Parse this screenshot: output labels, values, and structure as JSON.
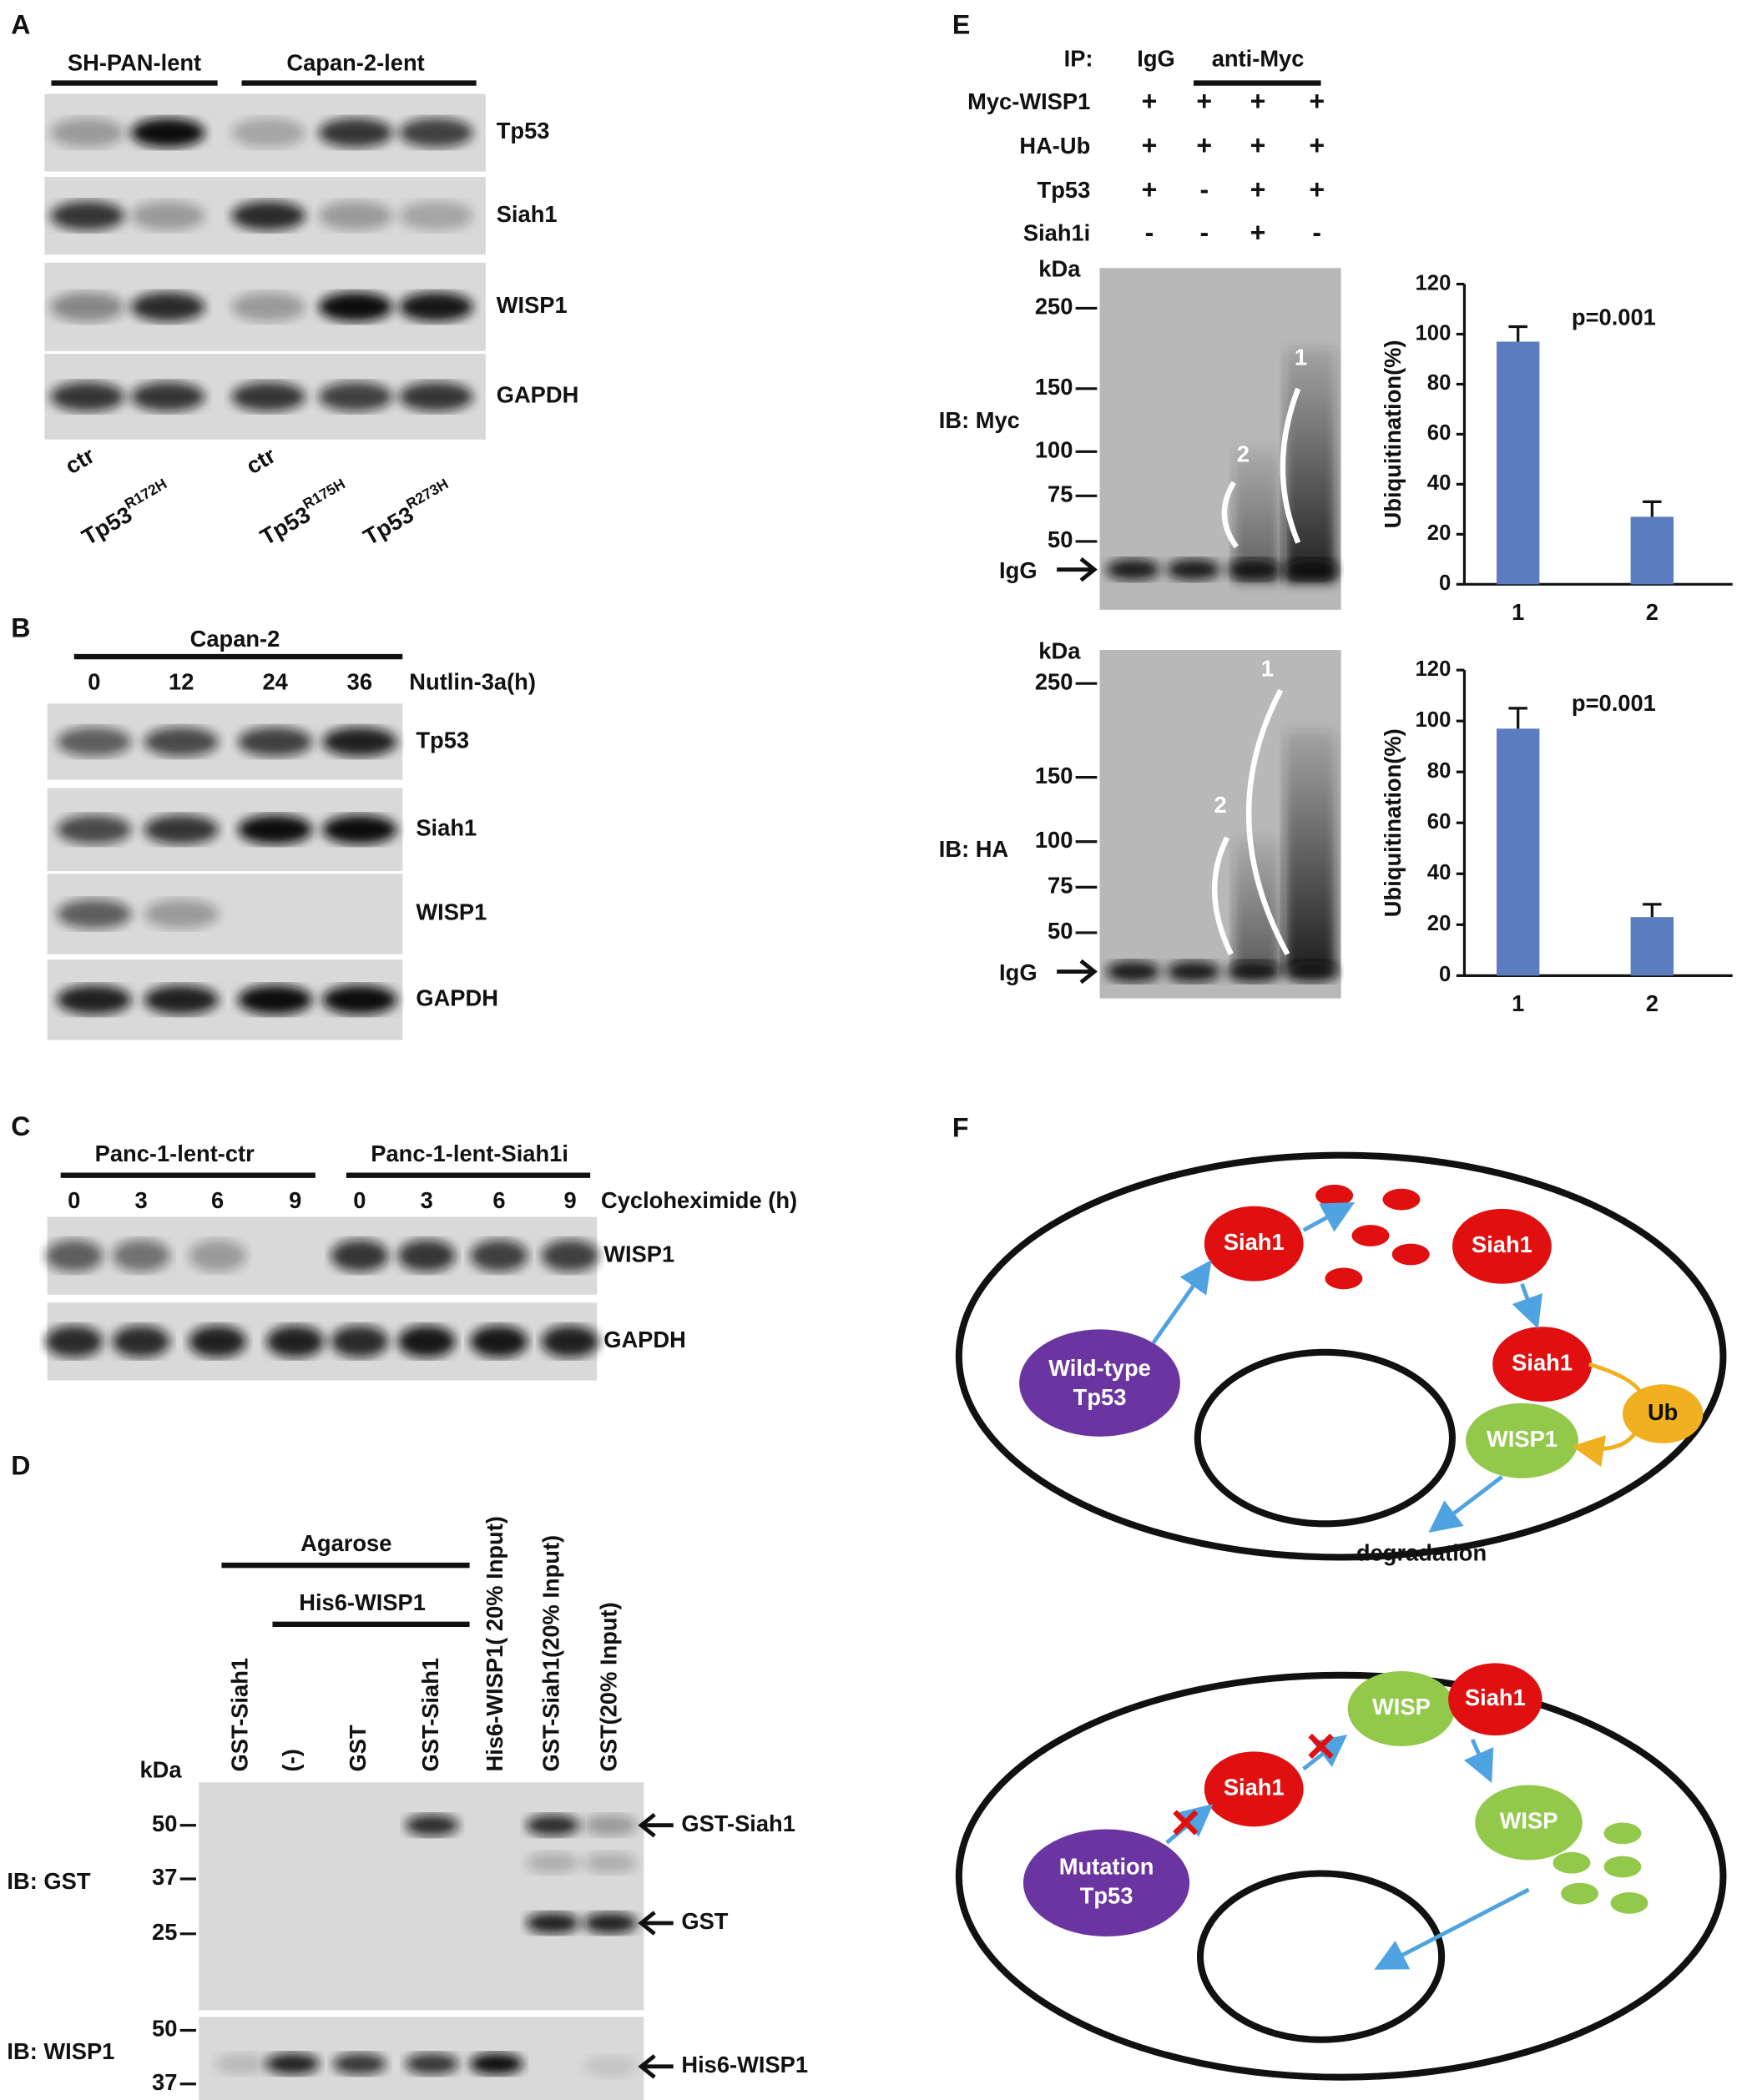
{
  "panels": {
    "A": {
      "letter": "A",
      "groups": [
        "SH-PAN-lent",
        "Capan-2-lent"
      ],
      "rows": [
        "Tp53",
        "Siah1",
        "WISP1",
        "GAPDH"
      ],
      "lanes": [
        {
          "text": "ctr"
        },
        {
          "text": "Tp53",
          "sup": "R172H"
        },
        {
          "text": "ctr"
        },
        {
          "text": "Tp53",
          "sup": "R175H"
        },
        {
          "text": "Tp53",
          "sup": "R273H"
        }
      ]
    },
    "B": {
      "letter": "B",
      "group": "Capan-2",
      "lanes": [
        "0",
        "12",
        "24",
        "36"
      ],
      "treatment": "Nutlin-3a(h)",
      "rows": [
        "Tp53",
        "Siah1",
        "WISP1",
        "GAPDH"
      ]
    },
    "C": {
      "letter": "C",
      "groups": [
        "Panc-1-lent-ctr",
        "Panc-1-lent-Siah1i"
      ],
      "lanes": [
        "0",
        "3",
        "6",
        "9",
        "0",
        "3",
        "6",
        "9"
      ],
      "treatment": "Cycloheximide (h)",
      "rows": [
        "WISP1",
        "GAPDH"
      ]
    },
    "D": {
      "letter": "D",
      "groups": [
        "Agarose",
        "His6-WISP1"
      ],
      "lanes": [
        "GST-Siah1",
        "(-)",
        "GST",
        "GST-Siah1",
        "His6-WISP1( 20% Input)",
        "GST-Siah1(20% Input)",
        "GST(20% Input)"
      ],
      "kda": "kDa",
      "markers": [
        "50",
        "37",
        "25",
        "50",
        "37"
      ],
      "blots": [
        "IB: GST",
        "IB: WISP1"
      ],
      "arrows": [
        "GST-Siah1",
        "GST",
        "His6-WISP1"
      ]
    },
    "E": {
      "letter": "E",
      "ip": {
        "label": "IP:",
        "groups": [
          "IgG",
          "anti-Myc"
        ]
      },
      "conditions": [
        {
          "name": "Myc-WISP1",
          "signs": [
            "+",
            "+",
            "+",
            "+"
          ]
        },
        {
          "name": "HA-Ub",
          "signs": [
            "+",
            "+",
            "+",
            "+"
          ]
        },
        {
          "name": "Tp53",
          "signs": [
            "+",
            "-",
            "+",
            "+"
          ]
        },
        {
          "name": "Siah1i",
          "signs": [
            "-",
            "-",
            "+",
            "-"
          ]
        }
      ],
      "blots": [
        {
          "label": "IB: Myc",
          "kda": "kDa",
          "markers": [
            "250",
            "150",
            "100",
            "75",
            "50"
          ],
          "igg": "IgG",
          "brackets": [
            "1",
            "2"
          ]
        },
        {
          "label": "IB: HA",
          "kda": "kDa",
          "markers": [
            "250",
            "150",
            "100",
            "75",
            "50"
          ],
          "igg": "IgG",
          "brackets": [
            "1",
            "2"
          ]
        }
      ]
    },
    "F": {
      "letter": "F",
      "top": {
        "siah1": [
          "Siah1",
          "Siah1",
          "Siah1"
        ],
        "tp53": [
          "Wild-type",
          "Tp53"
        ],
        "ub": "Ub",
        "wisp1": "WISP1",
        "outcome": "degradation"
      },
      "bottom": {
        "wisp": [
          "WISP",
          "WISP"
        ],
        "siah1": [
          "Siah1",
          "Siah1"
        ],
        "tp53": [
          "Mutation",
          "Tp53"
        ]
      }
    }
  },
  "chart_data": [
    {
      "type": "bar",
      "categories": [
        "1",
        "2"
      ],
      "values": [
        97,
        27
      ],
      "errors": [
        6,
        6
      ],
      "color": "#5b7dbf",
      "ylim": [
        0,
        120
      ],
      "yticks": [
        0,
        20,
        40,
        60,
        80,
        100,
        120
      ],
      "ylabel": "Ubiquitination(%)",
      "annotation": "p=0.001"
    },
    {
      "type": "bar",
      "categories": [
        "1",
        "2"
      ],
      "values": [
        97,
        23
      ],
      "errors": [
        8,
        5
      ],
      "color": "#5b7dbf",
      "ylim": [
        0,
        120
      ],
      "yticks": [
        0,
        20,
        40,
        60,
        80,
        100,
        120
      ],
      "ylabel": "Ubiquitination(%)",
      "annotation": "p=0.001"
    }
  ]
}
